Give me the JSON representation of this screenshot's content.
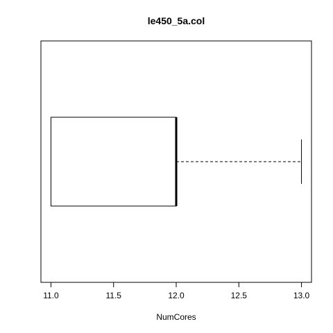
{
  "chart_data": {
    "type": "boxplot",
    "orientation": "horizontal",
    "title": "le450_5a.col",
    "xlabel": "NumCores",
    "ylabel": "",
    "xlim": [
      10.92,
      13.08
    ],
    "x_ticks": [
      "11.0",
      "11.5",
      "12.0",
      "12.5",
      "13.0"
    ],
    "box": {
      "whisker_low": 11.0,
      "q1": 11.0,
      "median": 12.0,
      "q3": 12.0,
      "whisker_high": 13.0
    },
    "grid": false,
    "legend": "none"
  }
}
